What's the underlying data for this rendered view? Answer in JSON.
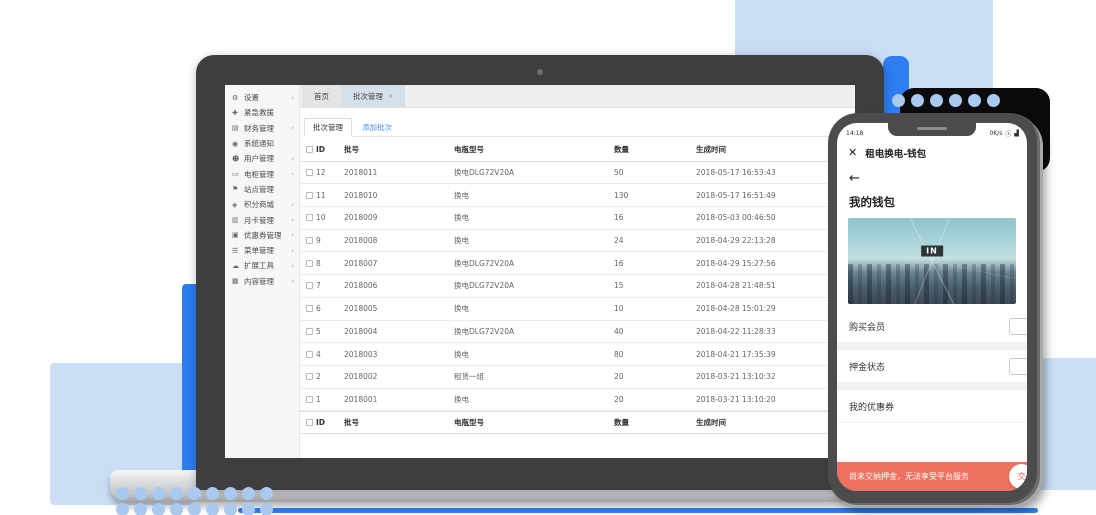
{
  "admin": {
    "top_tabs": {
      "home": "首页",
      "batch": "批次管理",
      "close": "×"
    },
    "sub_tabs": {
      "active": "批次管理",
      "add_link": "添加批次"
    },
    "sidebar": [
      {
        "icon": "gear-icon",
        "glyph": "⚙",
        "label": "设置",
        "chevron": "›"
      },
      {
        "icon": "rescue-icon",
        "glyph": "✚",
        "label": "紧急救援",
        "chevron": ""
      },
      {
        "icon": "finance-icon",
        "glyph": "▤",
        "label": "财务管理",
        "chevron": "›"
      },
      {
        "icon": "notification-icon",
        "glyph": "◉",
        "label": "系统通知",
        "chevron": ""
      },
      {
        "icon": "users-icon",
        "glyph": "☻",
        "label": "用户管理",
        "chevron": "›"
      },
      {
        "icon": "battery-icon",
        "glyph": "▭",
        "label": "电柜管理",
        "chevron": "›"
      },
      {
        "icon": "site-icon",
        "glyph": "⚑",
        "label": "站点管理",
        "chevron": ""
      },
      {
        "icon": "points-mall-icon",
        "glyph": "◈",
        "label": "积分商城",
        "chevron": "›"
      },
      {
        "icon": "month-card-icon",
        "glyph": "▥",
        "label": "月卡管理",
        "chevron": "›"
      },
      {
        "icon": "coupon-icon",
        "glyph": "▣",
        "label": "优惠券管理",
        "chevron": "›"
      },
      {
        "icon": "menu-icon",
        "glyph": "☰",
        "label": "菜单管理",
        "chevron": "›"
      },
      {
        "icon": "tools-icon",
        "glyph": "☁",
        "label": "扩展工具",
        "chevron": "›"
      },
      {
        "icon": "content-icon",
        "glyph": "▦",
        "label": "内容管理",
        "chevron": "›"
      }
    ],
    "table": {
      "headers": {
        "id": "ID",
        "batch_no": "批号",
        "model": "电瓶型号",
        "qty": "数量",
        "created": "生成时间"
      },
      "rows": [
        {
          "id": "12",
          "batch_no": "2018011",
          "model": "换电DLG72V20A",
          "qty": "50",
          "created": "2018-05-17 16:53:43"
        },
        {
          "id": "11",
          "batch_no": "2018010",
          "model": "换电",
          "qty": "130",
          "created": "2018-05-17 16:51:49"
        },
        {
          "id": "10",
          "batch_no": "2018009",
          "model": "换电",
          "qty": "16",
          "created": "2018-05-03 00:46:50"
        },
        {
          "id": "9",
          "batch_no": "2018008",
          "model": "换电",
          "qty": "24",
          "created": "2018-04-29 22:13:28"
        },
        {
          "id": "8",
          "batch_no": "2018007",
          "model": "换电DLG72V20A",
          "qty": "16",
          "created": "2018-04-29 15:27:56"
        },
        {
          "id": "7",
          "batch_no": "2018006",
          "model": "换电DLG72V20A",
          "qty": "15",
          "created": "2018-04-28 21:48:51"
        },
        {
          "id": "6",
          "batch_no": "2018005",
          "model": "换电",
          "qty": "10",
          "created": "2018-04-28 15:01:29"
        },
        {
          "id": "5",
          "batch_no": "2018004",
          "model": "换电DLG72V20A",
          "qty": "40",
          "created": "2018-04-22 11:28:33"
        },
        {
          "id": "4",
          "batch_no": "2018003",
          "model": "换电",
          "qty": "80",
          "created": "2018-04-21 17:35:39"
        },
        {
          "id": "2",
          "batch_no": "2018002",
          "model": "租赁一组",
          "qty": "20",
          "created": "2018-03-21 13:10:32"
        },
        {
          "id": "1",
          "batch_no": "2018001",
          "model": "换电",
          "qty": "20",
          "created": "2018-03-21 13:10:20"
        }
      ]
    }
  },
  "phone": {
    "status": {
      "time": "14:18",
      "net_speed": "0K/s",
      "shield_glyph": "ⓢ",
      "signal_glyph": "▟"
    },
    "app_bar": {
      "close": "✕",
      "title": "租电换电-钱包"
    },
    "back_arrow": "←",
    "heading": "我的钱包",
    "hero_label": "IN",
    "rows": [
      {
        "label": "购买会员",
        "has_button": true
      },
      {
        "label": "押金状态",
        "has_button": true
      },
      {
        "label": "我的优惠券",
        "has_button": false
      }
    ],
    "banner": {
      "text": "尚未交纳押金，无法享受平台服务",
      "action": "交"
    }
  },
  "colors": {
    "pale_blue": "#cbdef6",
    "vivid_blue": "#2e7ef2",
    "dot_blue": "#a9c9ef",
    "banner_red": "#f0705f",
    "link_blue": "#4a90d9",
    "active_tab": "#d6e0ea"
  }
}
